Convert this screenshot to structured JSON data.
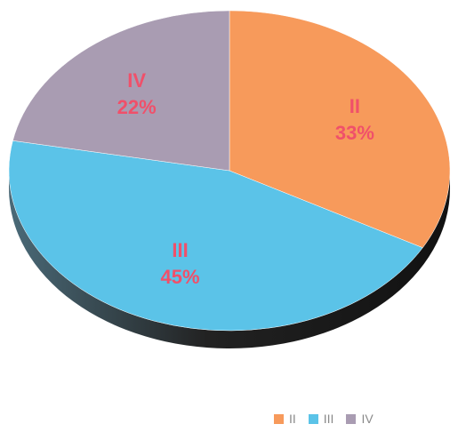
{
  "chart_data": {
    "type": "pie",
    "title": "",
    "slices": [
      {
        "label": "II",
        "value": 33,
        "value_label": "33%",
        "color": "#F79A5B"
      },
      {
        "label": "III",
        "value": 45,
        "value_label": "45%",
        "color": "#5BC3E8"
      },
      {
        "label": "IV",
        "value": 22,
        "value_label": "22%",
        "color": "#A99CB2"
      }
    ],
    "label_color": "#F0506A",
    "side_color": "#2b2b2b",
    "legend": {
      "placement": "bottom-right",
      "items": [
        "II",
        "III",
        "IV"
      ]
    }
  }
}
